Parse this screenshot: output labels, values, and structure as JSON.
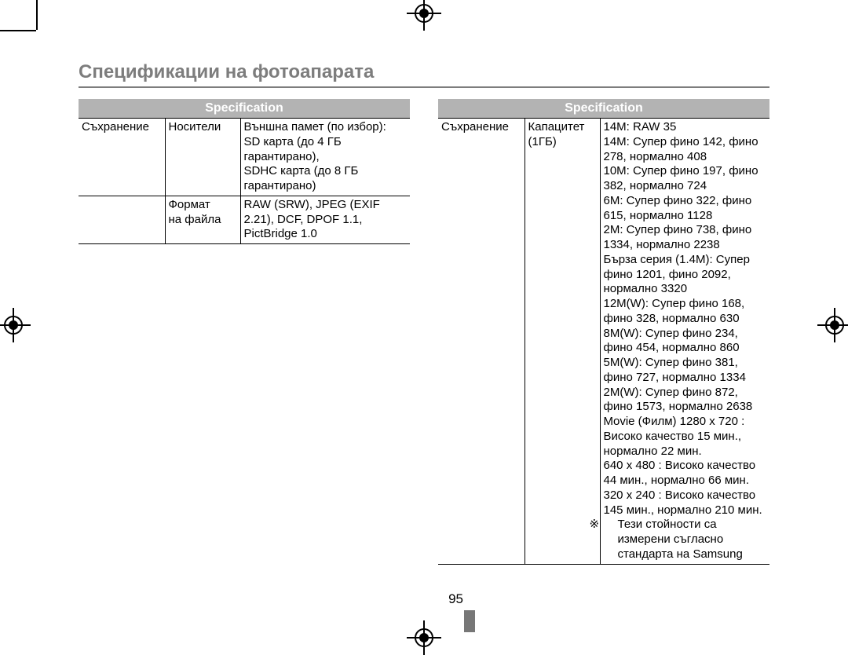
{
  "page_title": "Спецификации на фотоапарата",
  "header_label": "Specification",
  "page_number": "95",
  "left": {
    "category": "Съхранение",
    "rows": [
      {
        "label": "Носители",
        "value": "Външна памет (по избор):\nSD карта (до 4 ГБ гарантирано),\nSDHC карта (до 8 ГБ гарантирано)"
      },
      {
        "label": "Формат на файла",
        "value": "RAW (SRW), JPEG (EXIF 2.21), DCF, DPOF 1.1, PictBridge 1.0"
      }
    ]
  },
  "right": {
    "category": "Съхранение",
    "capacity_label": "Капацитет (1ГБ)",
    "capacity_lines": [
      "14M: RAW 35",
      "14M: Супер фино 142, фино 278, нормално 408",
      "10M: Супер фино 197, фино 382, нормално 724",
      "6M: Супер фино 322, фино 615, нормално 1128",
      "2M: Супер фино 738, фино 1334, нормално 2238",
      "Бърза серия (1.4M): Супер фино 1201, фино 2092, нормално 3320",
      "12M(W): Супер фино 168, фино 328, нормално 630",
      "8M(W): Супер фино 234, фино 454, нормално 860",
      "5M(W): Супер фино 381, фино 727, нормално 1334",
      "2M(W): Супер фино 872, фино 1573, нормално 2638",
      "Movie (Филм) 1280 x 720 : Високо качество 15 мин., нормално 22 мин.",
      "640 x 480 : Високо качество 44 мин., нормално 66 мин.",
      "320 x 240 : Високо качество 145 мин., нормално 210 мин."
    ],
    "note_symbol": "※",
    "note_text": "Тези стойности са измерени съгласно стандарта на Samsung"
  },
  "colors": {
    "title": "#7d7d7d",
    "header_bg": "#b3b3b3",
    "header_fg": "#ffffff",
    "rule": "#000000",
    "pagemark": "#777777"
  },
  "typography": {
    "title_size": 24,
    "body_size": 15
  }
}
